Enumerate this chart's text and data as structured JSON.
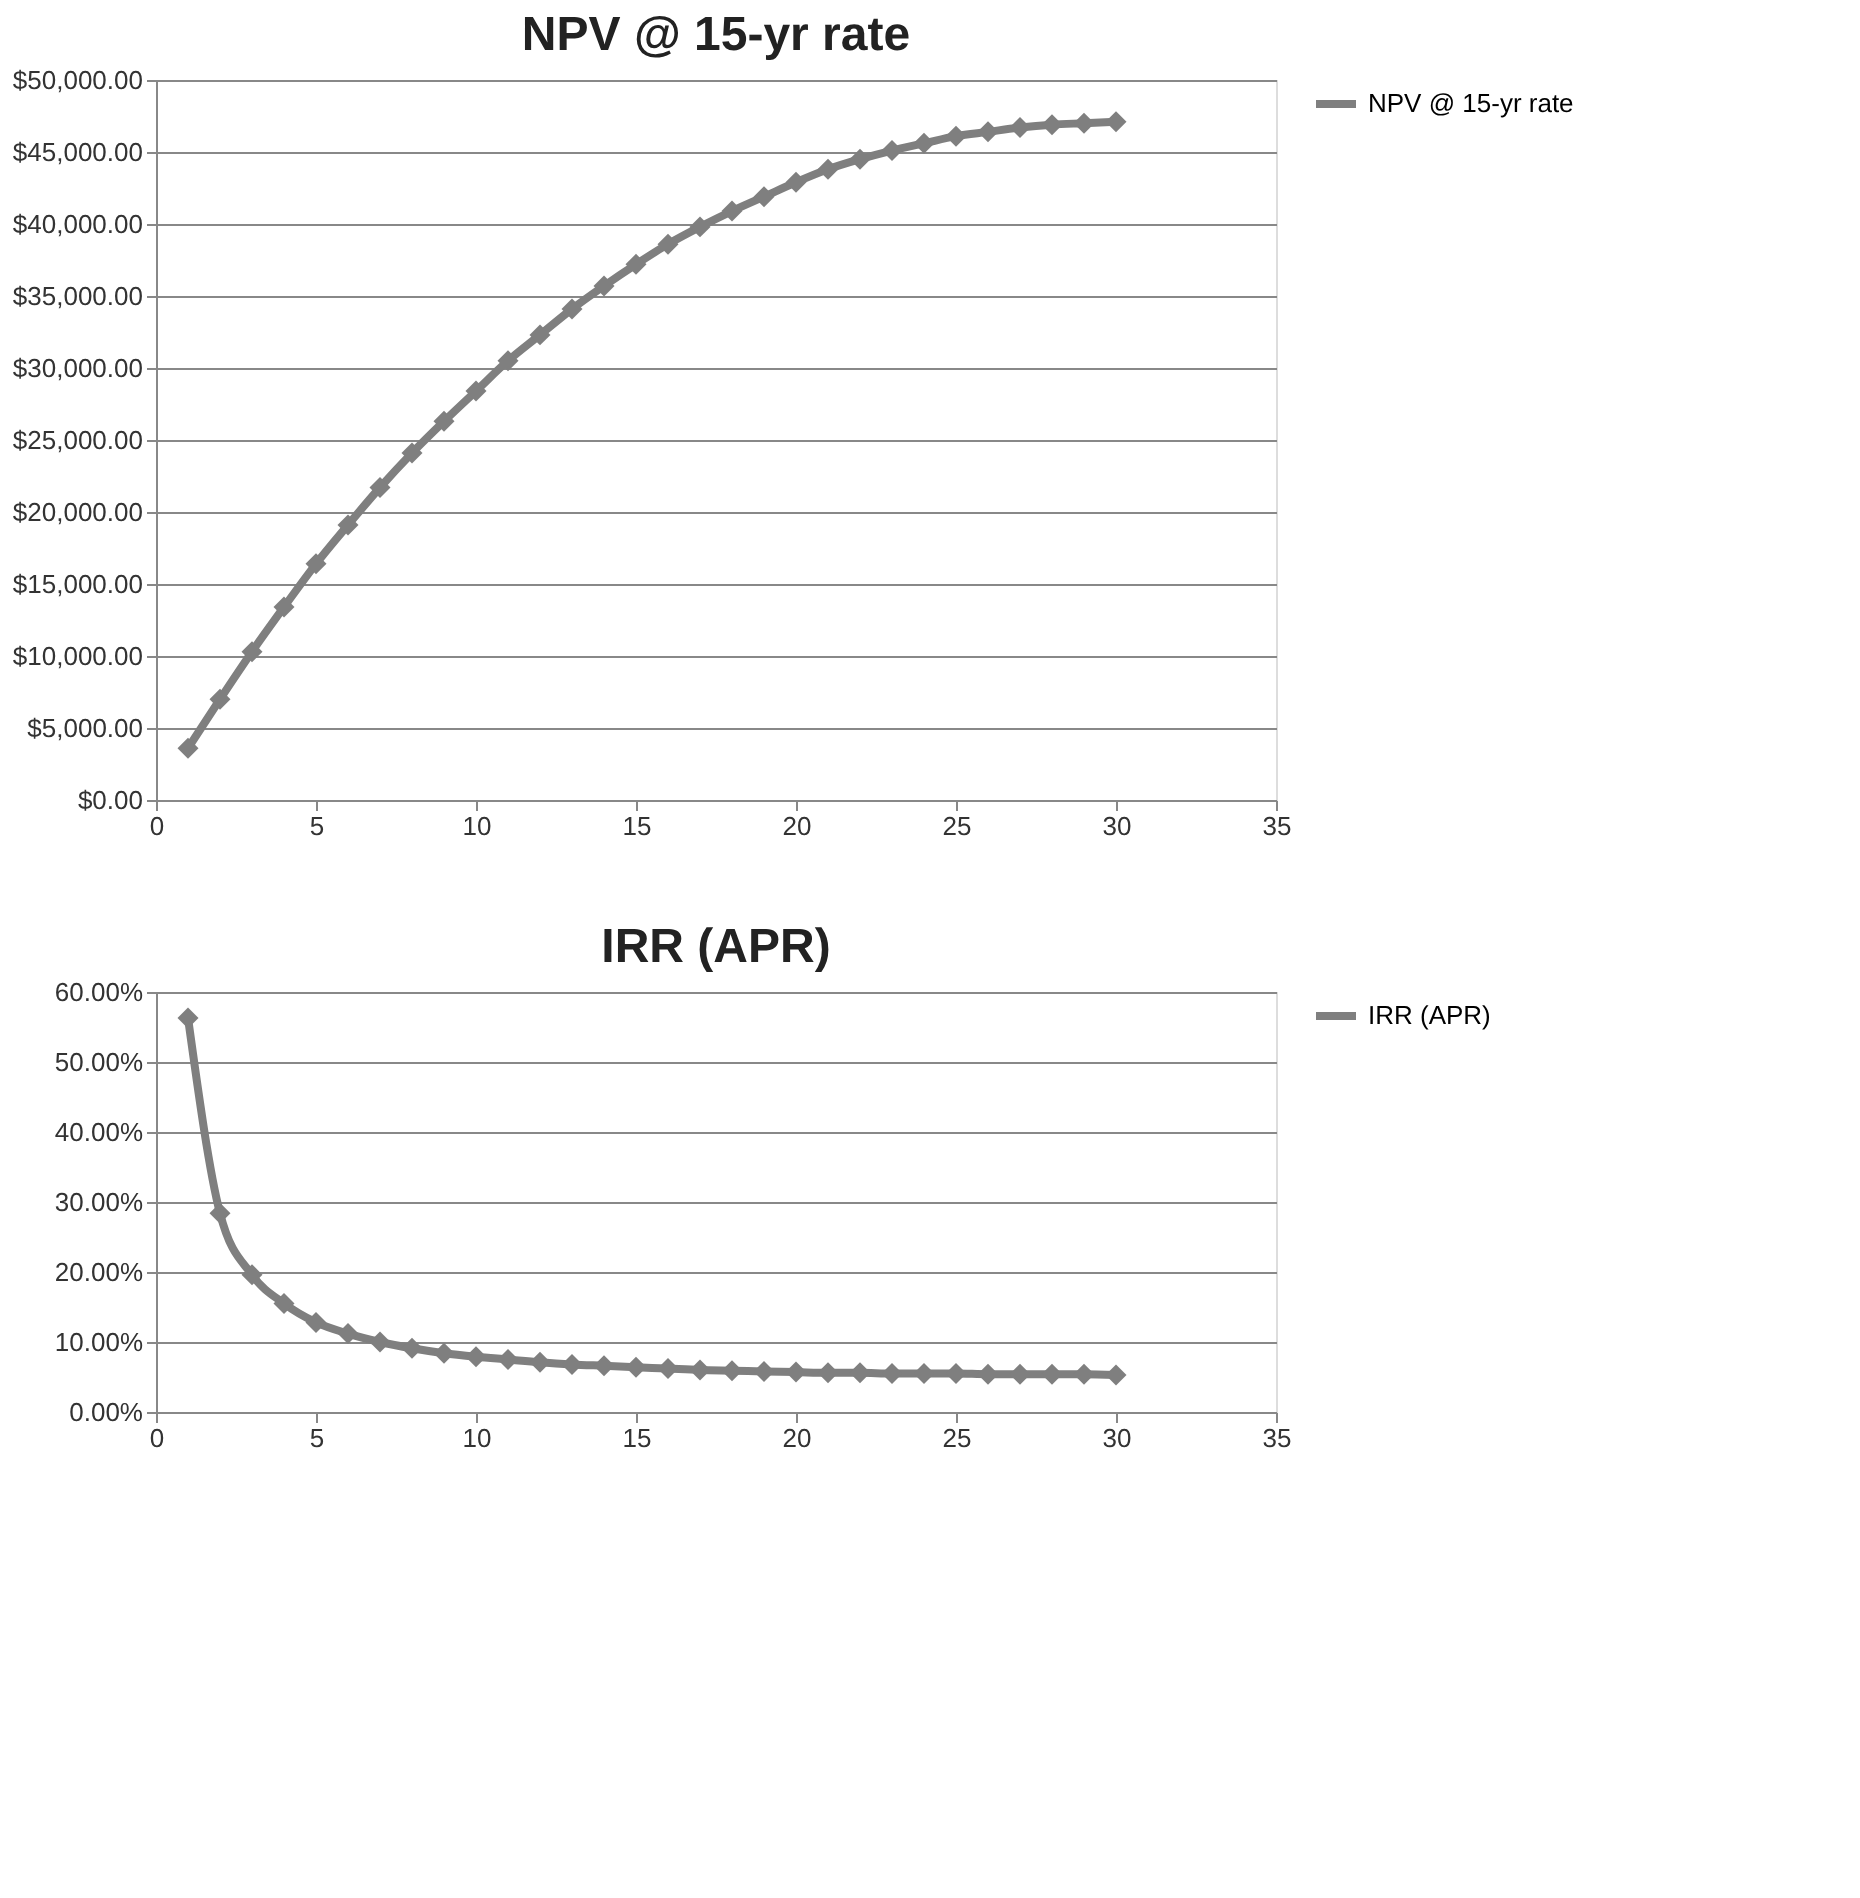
{
  "chart_data": [
    {
      "type": "line",
      "title": "NPV @ 15-yr rate",
      "x": [
        1,
        2,
        3,
        4,
        5,
        6,
        7,
        8,
        9,
        10,
        11,
        12,
        13,
        14,
        15,
        16,
        17,
        18,
        19,
        20,
        21,
        22,
        23,
        24,
        25,
        26,
        27,
        28,
        29,
        30
      ],
      "series": [
        {
          "name": "NPV @ 15-yr rate",
          "color": "#7f7f7f",
          "values": [
            3600,
            7000,
            10300,
            13400,
            16400,
            19100,
            21700,
            24100,
            26300,
            28400,
            30500,
            32300,
            34100,
            35700,
            37200,
            38600,
            39800,
            40900,
            41900,
            42900,
            43800,
            44500,
            45100,
            45600,
            46100,
            46400,
            46700,
            46900,
            47000,
            47100
          ]
        }
      ],
      "xlim": [
        0,
        35
      ],
      "xticks": [
        0,
        5,
        10,
        15,
        20,
        25,
        30,
        35
      ],
      "ylim": [
        0,
        50000
      ],
      "yticks": [
        {
          "value": 0,
          "label": "$0.00"
        },
        {
          "value": 5000,
          "label": "$5,000.00"
        },
        {
          "value": 10000,
          "label": "$10,000.00"
        },
        {
          "value": 15000,
          "label": "$15,000.00"
        },
        {
          "value": 20000,
          "label": "$20,000.00"
        },
        {
          "value": 25000,
          "label": "$25,000.00"
        },
        {
          "value": 30000,
          "label": "$30,000.00"
        },
        {
          "value": 35000,
          "label": "$35,000.00"
        },
        {
          "value": 40000,
          "label": "$40,000.00"
        },
        {
          "value": 45000,
          "label": "$45,000.00"
        },
        {
          "value": 50000,
          "label": "$50,000.00"
        }
      ],
      "grid": "y",
      "legend": "right",
      "marker": "diamond",
      "line_style": "solid"
    },
    {
      "type": "line",
      "title": "IRR (APR)",
      "x": [
        1,
        2,
        3,
        4,
        5,
        6,
        7,
        8,
        9,
        10,
        11,
        12,
        13,
        14,
        15,
        16,
        17,
        18,
        19,
        20,
        21,
        22,
        23,
        24,
        25,
        26,
        27,
        28,
        29,
        30
      ],
      "series": [
        {
          "name": "IRR (APR)",
          "color": "#7f7f7f",
          "values": [
            56.3,
            28.4,
            19.6,
            15.5,
            12.8,
            11.2,
            10.0,
            9.1,
            8.4,
            7.9,
            7.5,
            7.1,
            6.8,
            6.6,
            6.4,
            6.2,
            6.0,
            5.9,
            5.8,
            5.7,
            5.6,
            5.6,
            5.5,
            5.5,
            5.5,
            5.4,
            5.4,
            5.4,
            5.4,
            5.3
          ]
        }
      ],
      "xlim": [
        0,
        35
      ],
      "xticks": [
        0,
        5,
        10,
        15,
        20,
        25,
        30,
        35
      ],
      "ylim": [
        0,
        60
      ],
      "yticks": [
        {
          "value": 0,
          "label": "0.00%"
        },
        {
          "value": 10,
          "label": "10.00%"
        },
        {
          "value": 20,
          "label": "20.00%"
        },
        {
          "value": 30,
          "label": "30.00%"
        },
        {
          "value": 40,
          "label": "40.00%"
        },
        {
          "value": 50,
          "label": "50.00%"
        },
        {
          "value": 60,
          "label": "60.00%"
        }
      ],
      "grid": "y",
      "legend": "right",
      "marker": "diamond",
      "line_style": "solid"
    }
  ]
}
